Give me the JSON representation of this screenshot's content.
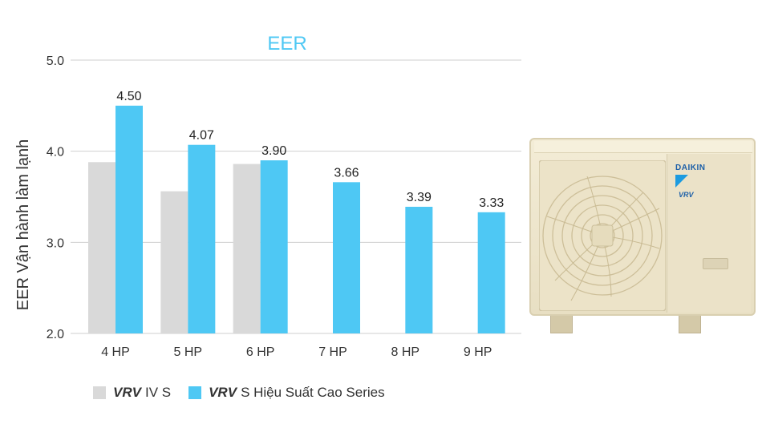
{
  "chart_data": {
    "type": "bar",
    "title": "EER",
    "ylabel": "EER Vận hành làm lạnh",
    "xlabel": "",
    "ylim": [
      2.0,
      5.0
    ],
    "yticks": [
      "2.0",
      "3.0",
      "4.0",
      "5.0"
    ],
    "grid": true,
    "legend_position": "bottom-left",
    "categories": [
      "4 HP",
      "5 HP",
      "6 HP",
      "7 HP",
      "8 HP",
      "9 HP"
    ],
    "series": [
      {
        "name": "VRV IV S",
        "values": [
          3.88,
          3.56,
          3.86,
          null,
          null,
          null
        ],
        "color": "#d9d9d9"
      },
      {
        "name": "VRV S Hiệu Suất Cao Series",
        "values": [
          4.5,
          4.07,
          3.9,
          3.66,
          3.39,
          3.33
        ],
        "labels": [
          "4.50",
          "4.07",
          "3.90",
          "3.66",
          "3.39",
          "3.33"
        ],
        "color": "#4ec8f4"
      }
    ],
    "title_color": "#4ec8f4"
  },
  "legend": {
    "items": [
      {
        "brand": "VRV",
        "rest": "IV S",
        "color": "#d9d9d9"
      },
      {
        "brand": "VRV",
        "rest": "S Hiệu Suất Cao Series",
        "color": "#4ec8f4"
      }
    ]
  },
  "product": {
    "brand": "DAIKIN",
    "badge": "VRV",
    "icons": [
      "fan-grill-icon",
      "daikin-logo-icon"
    ]
  }
}
